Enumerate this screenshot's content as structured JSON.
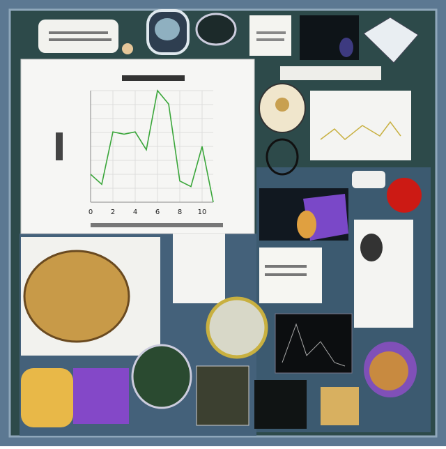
{
  "chart_data": {
    "type": "line",
    "x": [
      0,
      1,
      2,
      3,
      4,
      5,
      6,
      7,
      8,
      9,
      10,
      11
    ],
    "series": [
      {
        "color": "#3aa63a",
        "values": [
          2.5,
          1.6,
          6.3,
          6.1,
          6.3,
          4.7,
          10,
          8.8,
          1.9,
          1.4,
          5,
          0
        ]
      }
    ],
    "xlim": [
      0,
      11
    ],
    "xticks": [
      0,
      2,
      4,
      6,
      8,
      10
    ],
    "ylim": [
      0,
      10
    ],
    "grid": true
  }
}
